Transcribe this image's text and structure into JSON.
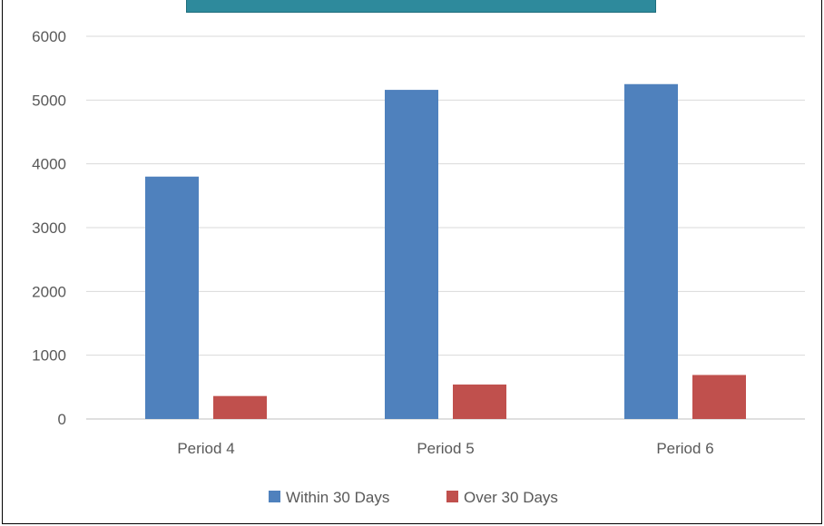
{
  "chart_data": {
    "type": "bar",
    "categories": [
      "Period 4",
      "Period 5",
      "Period 6"
    ],
    "series": [
      {
        "name": "Within 30 Days",
        "values": [
          3800,
          5160,
          5250
        ],
        "color": "#4f81bd"
      },
      {
        "name": "Over 30 Days",
        "values": [
          360,
          540,
          690
        ],
        "color": "#c0504d"
      }
    ],
    "ylim": [
      0,
      6000
    ],
    "yticks": [
      "0",
      "1000",
      "2000",
      "3000",
      "4000",
      "5000",
      "6000"
    ],
    "grid": true,
    "legend_position": "bottom"
  }
}
